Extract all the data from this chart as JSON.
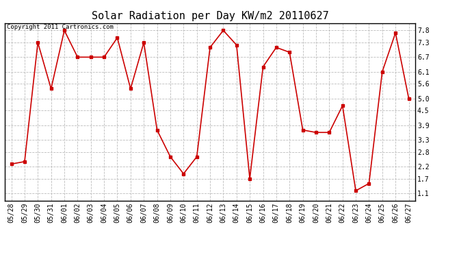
{
  "title": "Solar Radiation per Day KW/m2 20110627",
  "copyright_text": "Copyright 2011 Cartronics.com",
  "dates": [
    "05/28",
    "05/29",
    "05/30",
    "05/31",
    "06/01",
    "06/02",
    "06/03",
    "06/04",
    "06/05",
    "06/06",
    "06/07",
    "06/08",
    "06/09",
    "06/10",
    "06/11",
    "06/12",
    "06/13",
    "06/14",
    "06/15",
    "06/16",
    "06/17",
    "06/18",
    "06/19",
    "06/20",
    "06/21",
    "06/22",
    "06/23",
    "06/24",
    "06/25",
    "06/26",
    "06/27"
  ],
  "values": [
    2.3,
    2.4,
    7.3,
    5.4,
    7.8,
    6.7,
    6.7,
    6.7,
    7.5,
    5.4,
    7.3,
    3.7,
    2.6,
    1.9,
    2.6,
    7.1,
    7.8,
    7.2,
    1.7,
    6.3,
    7.1,
    6.9,
    3.7,
    3.6,
    3.6,
    4.7,
    1.2,
    1.5,
    6.1,
    7.7,
    5.0
  ],
  "line_color": "#cc0000",
  "marker": "s",
  "marker_size": 3,
  "bg_color": "#ffffff",
  "grid_color": "#bbbbbb",
  "ylim": [
    0.8,
    8.1
  ],
  "yticks": [
    1.1,
    1.7,
    2.2,
    2.8,
    3.3,
    3.9,
    4.5,
    5.0,
    5.6,
    6.1,
    6.7,
    7.3,
    7.8
  ],
  "title_fontsize": 11,
  "copyright_fontsize": 6.5,
  "tick_fontsize": 7,
  "ytick_fontsize": 7
}
